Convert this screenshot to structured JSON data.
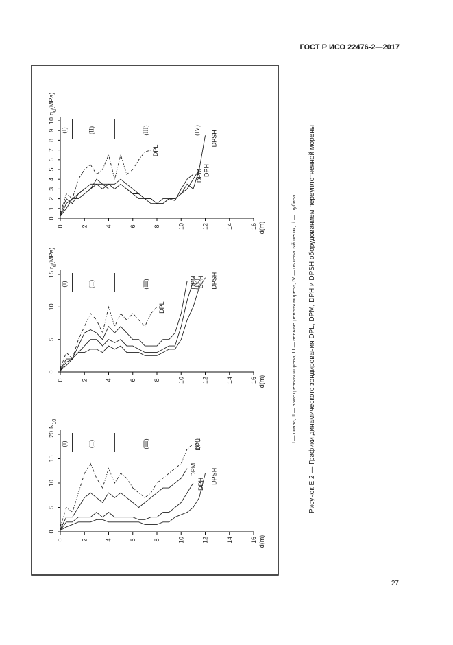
{
  "header": {
    "title": "ГОСТ Р ИСО 22476-2—2017"
  },
  "legend_note": "I — почва; II — выветренная морена; III — невыветренная морена; IV — пылеватый песок; d — глубина",
  "caption": "Рисунок E.2 — Графики динамического зондирования DPL, DPM, DPH и DPSH оборудованием переуплотненной морены",
  "page_number": "27",
  "chart_data": [
    {
      "type": "line",
      "y_label": {
        "main": "q",
        "sub": "d",
        "unit": "(MPa)"
      },
      "x_label": "d(m)",
      "xlim": [
        0,
        16
      ],
      "xticks": [
        0,
        2,
        4,
        6,
        8,
        10,
        12,
        14,
        16
      ],
      "ylim": [
        0,
        10
      ],
      "yticks": [
        0,
        1,
        2,
        3,
        4,
        5,
        6,
        7,
        8,
        9,
        10
      ],
      "zones": [
        {
          "label": "(I)",
          "from": 0,
          "to": 1
        },
        {
          "label": "(II)",
          "from": 1,
          "to": 4.5
        },
        {
          "label": "(III)",
          "from": 4.5,
          "to": 10
        },
        {
          "label": "(IV)",
          "from": 10,
          "to": 13
        }
      ],
      "zone_boundaries": [
        1,
        4.5
      ],
      "x": [
        0,
        0.5,
        1,
        1.5,
        2,
        2.5,
        3,
        3.5,
        4,
        4.5,
        5,
        5.5,
        6,
        6.5,
        7,
        7.5,
        8,
        8.5,
        9,
        9.5,
        10,
        10.5,
        11,
        11.5,
        12
      ],
      "series": [
        {
          "name": "DPL",
          "color": "#222",
          "values": [
            0.5,
            2.5,
            2,
            4,
            5,
            5.5,
            4.5,
            5,
            6.5,
            4,
            6.5,
            4.5,
            5,
            6,
            6.8,
            7,
            null,
            null,
            null,
            null,
            null,
            null,
            null,
            null,
            null
          ]
        },
        {
          "name": "DPM",
          "color": "#222",
          "values": [
            0.3,
            2,
            1.5,
            2.5,
            3,
            3.5,
            3.5,
            3,
            3.5,
            3.5,
            4,
            3.5,
            3,
            2.5,
            2,
            2,
            1.5,
            1.5,
            2,
            1.8,
            3,
            4,
            4.5,
            null,
            null
          ]
        },
        {
          "name": "DPH",
          "color": "#222",
          "values": [
            0.2,
            1.5,
            2,
            2,
            2.5,
            3,
            4,
            3.5,
            3,
            3,
            3,
            3,
            2.5,
            2,
            2,
            1.5,
            1.5,
            2,
            2,
            2,
            2.5,
            3,
            4,
            5,
            null
          ]
        },
        {
          "name": "DPSH",
          "color": "#222",
          "values": [
            0.2,
            1,
            2,
            2.5,
            3,
            3,
            3.5,
            3.5,
            3.5,
            3,
            3.5,
            3,
            2.5,
            2.5,
            2,
            2,
            1.5,
            1.5,
            2,
            2,
            2.5,
            3.5,
            3,
            5,
            8.5
          ]
        }
      ]
    },
    {
      "type": "line",
      "y_label": {
        "main": "r",
        "sub": "d",
        "unit": "(MPa)"
      },
      "x_label": "d(m)",
      "xlim": [
        0,
        16
      ],
      "xticks": [
        0,
        2,
        4,
        6,
        8,
        10,
        12,
        14,
        16
      ],
      "ylim": [
        0,
        15
      ],
      "yticks": [
        0,
        5,
        10,
        15
      ],
      "zones": [
        {
          "label": "(I)",
          "from": 0,
          "to": 1
        },
        {
          "label": "(II)",
          "from": 1,
          "to": 4.5
        },
        {
          "label": "(III)",
          "from": 4.5,
          "to": 10
        },
        {
          "label": "(IV)",
          "from": 10,
          "to": 13
        }
      ],
      "zone_boundaries": [
        1,
        4.5
      ],
      "x": [
        0,
        0.5,
        1,
        1.5,
        2,
        2.5,
        3,
        3.5,
        4,
        4.5,
        5,
        5.5,
        6,
        6.5,
        7,
        7.5,
        8,
        8.5,
        9,
        9.5,
        10,
        10.5,
        11,
        11.5,
        12
      ],
      "series": [
        {
          "name": "DPL",
          "color": "#222",
          "values": [
            0.5,
            3,
            2,
            5,
            7,
            9,
            8,
            6,
            10,
            7,
            9,
            8,
            9,
            8,
            7,
            9,
            10,
            null,
            null,
            null,
            null,
            null,
            null,
            null,
            null
          ]
        },
        {
          "name": "DPM",
          "color": "#222",
          "values": [
            0.3,
            2,
            2,
            4,
            6,
            6.5,
            6,
            5,
            7,
            6,
            7,
            6,
            5,
            5,
            4,
            4,
            4,
            5,
            5,
            6,
            9,
            14,
            null,
            null,
            null
          ]
        },
        {
          "name": "DPH",
          "color": "#222",
          "values": [
            0.2,
            1.5,
            2,
            3,
            4,
            5,
            5,
            4,
            5,
            4.5,
            5,
            4,
            4,
            3.5,
            3,
            3,
            3,
            3.5,
            4,
            4,
            7,
            11,
            14,
            null,
            null
          ]
        },
        {
          "name": "DPSH",
          "color": "#222",
          "values": [
            0.2,
            1,
            2,
            3,
            3,
            3.5,
            3.5,
            3,
            4,
            3.5,
            4,
            3,
            3,
            3,
            2.5,
            2.5,
            2.5,
            3,
            3.5,
            3.5,
            5,
            8,
            10,
            13,
            14.5
          ]
        }
      ]
    },
    {
      "type": "line",
      "y_label": {
        "main": "N",
        "sub": "10",
        "unit": ""
      },
      "x_label": "d(m)",
      "xlim": [
        0,
        16
      ],
      "xticks": [
        0,
        2,
        4,
        6,
        8,
        10,
        12,
        14,
        16
      ],
      "ylim": [
        0,
        20
      ],
      "yticks": [
        0,
        5,
        10,
        15,
        20
      ],
      "zones": [
        {
          "label": "(I)",
          "from": 0,
          "to": 1
        },
        {
          "label": "(II)",
          "from": 1,
          "to": 4.5
        },
        {
          "label": "(III)",
          "from": 4.5,
          "to": 10
        },
        {
          "label": "(IV)",
          "from": 10,
          "to": 13
        }
      ],
      "zone_boundaries": [
        1,
        4.5
      ],
      "x": [
        0,
        0.5,
        1,
        1.5,
        2,
        2.5,
        3,
        3.5,
        4,
        4.5,
        5,
        5.5,
        6,
        6.5,
        7,
        7.5,
        8,
        8.5,
        9,
        9.5,
        10,
        10.5,
        11,
        11.5,
        12
      ],
      "series": [
        {
          "name": "DPL",
          "color": "#222",
          "values": [
            1,
            5,
            4,
            8,
            12,
            14,
            11,
            9,
            13,
            10,
            12,
            11,
            9,
            8,
            7,
            8,
            10,
            11,
            12,
            13,
            14,
            17,
            18,
            null,
            null
          ]
        },
        {
          "name": "DPM",
          "color": "#222",
          "values": [
            0.5,
            3,
            3,
            5,
            7,
            8,
            7,
            6,
            8,
            7,
            8,
            7,
            6,
            5,
            6,
            7,
            8,
            9,
            9,
            10,
            11,
            13,
            null,
            null,
            null
          ]
        },
        {
          "name": "DPH",
          "color": "#222",
          "values": [
            0.3,
            2,
            2,
            3,
            3,
            3,
            4,
            3,
            4,
            3,
            3,
            3,
            3,
            2.5,
            2.5,
            3,
            3,
            4,
            4,
            5,
            6,
            8,
            10,
            null,
            null
          ]
        },
        {
          "name": "DPSH",
          "color": "#222",
          "values": [
            0.3,
            1,
            1.5,
            2,
            2,
            2,
            2.5,
            2.5,
            2,
            2,
            2,
            2,
            2,
            2,
            1.5,
            1.5,
            1.5,
            2,
            2,
            3,
            3.5,
            4,
            5,
            7,
            12
          ]
        }
      ]
    }
  ]
}
